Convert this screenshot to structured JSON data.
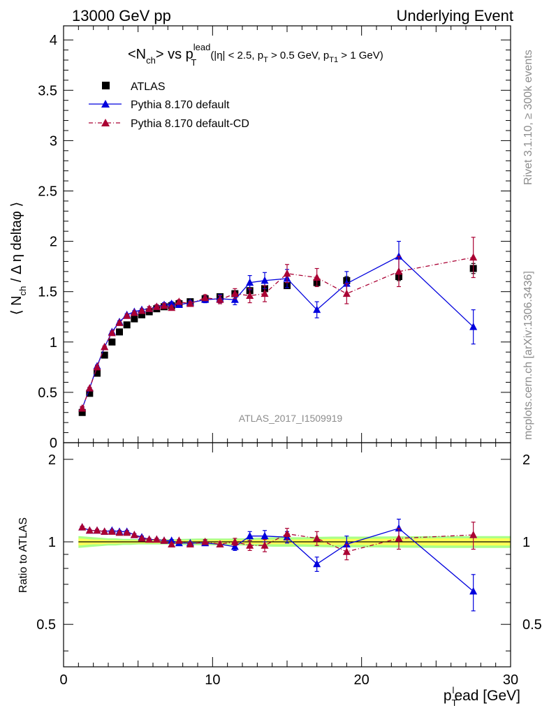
{
  "header": {
    "left": "13000 GeV pp",
    "right": "Underlying Event"
  },
  "side_text": {
    "rivet": "Rivet 3.1.10, ≥ 300k events",
    "mcplots": "mcplots.cern.ch [arXiv:1306.3436]"
  },
  "analysis_tag": "ATLAS_2017_I1509919",
  "chart_data": [
    {
      "type": "scatter",
      "title": "<N_ch> vs p_T^lead (|η| < 2.5, p_T > 0.5 GeV, p_T1 > 1 GeV)",
      "title_parts": {
        "main": "<N",
        "main_sub": "ch",
        "main_rest": "> vs p",
        "pt_sup": "lead",
        "pt_sub": "T",
        "cuts_a": "(|η| < 2.5, p",
        "cuts_a_sub": "T",
        "cuts_b": " > 0.5 GeV, p",
        "cuts_b_sub": "T1",
        "cuts_c": " > 1 GeV)"
      },
      "ylabel": "⟨ N_ch / Δ η deltaφ ⟩",
      "ylabel_parts": {
        "a": "⟨ N",
        "sub": "ch",
        "b": " / Δ η deltaφ ⟩"
      },
      "xlim": [
        0,
        30
      ],
      "ylim": [
        0,
        4.14
      ],
      "yticks": [
        "0",
        "0.5",
        "1",
        "1.5",
        "2",
        "2.5",
        "3",
        "3.5",
        "4"
      ],
      "legend_position": "top-left",
      "series": [
        {
          "name": "ATLAS",
          "marker": "square",
          "color": "#000000",
          "x": [
            1.25,
            1.75,
            2.25,
            2.75,
            3.25,
            3.75,
            4.25,
            4.75,
            5.25,
            5.75,
            6.25,
            6.75,
            7.25,
            7.75,
            8.5,
            9.5,
            10.5,
            11.5,
            12.5,
            13.5,
            15.0,
            17.0,
            19.0,
            22.5,
            27.5
          ],
          "y": [
            0.3,
            0.49,
            0.69,
            0.87,
            1.0,
            1.1,
            1.17,
            1.23,
            1.27,
            1.3,
            1.33,
            1.35,
            1.36,
            1.38,
            1.4,
            1.43,
            1.45,
            1.48,
            1.51,
            1.53,
            1.56,
            1.59,
            1.61,
            1.65,
            1.73
          ],
          "err": [
            0.01,
            0.01,
            0.01,
            0.01,
            0.01,
            0.01,
            0.01,
            0.01,
            0.01,
            0.01,
            0.01,
            0.01,
            0.01,
            0.01,
            0.02,
            0.02,
            0.02,
            0.02,
            0.02,
            0.03,
            0.03,
            0.03,
            0.04,
            0.04,
            0.05
          ]
        },
        {
          "name": "Pythia 8.170 default",
          "marker": "triangle",
          "line": "solid",
          "color": "#0000dd",
          "x": [
            1.25,
            1.75,
            2.25,
            2.75,
            3.25,
            3.75,
            4.25,
            4.75,
            5.25,
            5.75,
            6.25,
            6.75,
            7.25,
            7.75,
            8.5,
            9.5,
            10.5,
            11.5,
            12.5,
            13.5,
            15.0,
            17.0,
            19.0,
            22.5,
            27.5
          ],
          "y": [
            0.34,
            0.54,
            0.76,
            0.95,
            1.1,
            1.2,
            1.27,
            1.3,
            1.32,
            1.33,
            1.35,
            1.37,
            1.38,
            1.37,
            1.39,
            1.42,
            1.43,
            1.42,
            1.59,
            1.61,
            1.63,
            1.32,
            1.58,
            1.85,
            1.15
          ],
          "err": [
            0.01,
            0.01,
            0.01,
            0.01,
            0.01,
            0.01,
            0.01,
            0.01,
            0.01,
            0.02,
            0.02,
            0.02,
            0.02,
            0.02,
            0.02,
            0.03,
            0.04,
            0.05,
            0.07,
            0.08,
            0.09,
            0.08,
            0.12,
            0.15,
            0.17
          ]
        },
        {
          "name": "Pythia 8.170 default-CD",
          "marker": "triangle",
          "line": "dashdot",
          "color": "#aa0033",
          "x": [
            1.25,
            1.75,
            2.25,
            2.75,
            3.25,
            3.75,
            4.25,
            4.75,
            5.25,
            5.75,
            6.25,
            6.75,
            7.25,
            7.75,
            8.5,
            9.5,
            10.5,
            11.5,
            12.5,
            13.5,
            15.0,
            17.0,
            19.0,
            22.5,
            27.5
          ],
          "y": [
            0.34,
            0.54,
            0.75,
            0.95,
            1.09,
            1.19,
            1.26,
            1.29,
            1.31,
            1.33,
            1.35,
            1.36,
            1.34,
            1.4,
            1.38,
            1.44,
            1.42,
            1.48,
            1.46,
            1.48,
            1.68,
            1.64,
            1.48,
            1.7,
            1.84
          ],
          "err": [
            0.01,
            0.01,
            0.01,
            0.01,
            0.01,
            0.01,
            0.01,
            0.01,
            0.01,
            0.02,
            0.02,
            0.02,
            0.02,
            0.02,
            0.02,
            0.03,
            0.04,
            0.05,
            0.07,
            0.08,
            0.09,
            0.09,
            0.1,
            0.15,
            0.2
          ]
        }
      ]
    },
    {
      "type": "scatter",
      "title": "",
      "ylabel": "Ratio to ATLAS",
      "xlabel": "p_T^l ead [GeV]",
      "xlabel_parts": {
        "a": "p",
        "sub": "T",
        "sup": "l",
        "b": "ead [GeV]"
      },
      "xlim": [
        0,
        30
      ],
      "ylim": [
        0.35,
        2.3
      ],
      "xticks": [
        "0",
        "10",
        "20",
        "30"
      ],
      "yticks": [
        "0.5",
        "1",
        "2"
      ],
      "reference_line": 1,
      "band": {
        "x": [
          1.0,
          1.5,
          2.0,
          2.5,
          3.0,
          3.5,
          4.0,
          4.5,
          5.0,
          5.5,
          6.0,
          6.5,
          7.0,
          7.5,
          8.0,
          9.0,
          10.0,
          11.0,
          12.0,
          13.0,
          14.0,
          16.0,
          18.0,
          20.0,
          25.0,
          30.0
        ],
        "inner": [
          0.03,
          0.025,
          0.02,
          0.02,
          0.015,
          0.015,
          0.012,
          0.012,
          0.012,
          0.012,
          0.012,
          0.012,
          0.012,
          0.012,
          0.012,
          0.014,
          0.014,
          0.014,
          0.016,
          0.018,
          0.02,
          0.02,
          0.025,
          0.025,
          0.03,
          0.03
        ],
        "outer": [
          0.05,
          0.045,
          0.04,
          0.035,
          0.03,
          0.03,
          0.025,
          0.025,
          0.022,
          0.022,
          0.022,
          0.022,
          0.022,
          0.022,
          0.025,
          0.028,
          0.028,
          0.028,
          0.03,
          0.035,
          0.04,
          0.04,
          0.045,
          0.045,
          0.05,
          0.05
        ]
      },
      "series": [
        {
          "name": "Pythia 8.170 default",
          "marker": "triangle",
          "line": "solid",
          "color": "#0000dd",
          "x": [
            1.25,
            1.75,
            2.25,
            2.75,
            3.25,
            3.75,
            4.25,
            4.75,
            5.25,
            5.75,
            6.25,
            6.75,
            7.25,
            7.75,
            8.5,
            9.5,
            10.5,
            11.5,
            12.5,
            13.5,
            15.0,
            17.0,
            19.0,
            22.5,
            27.5
          ],
          "y": [
            1.13,
            1.1,
            1.1,
            1.09,
            1.1,
            1.09,
            1.09,
            1.06,
            1.04,
            1.02,
            1.02,
            1.01,
            1.01,
            0.99,
            0.99,
            0.99,
            0.98,
            0.96,
            1.05,
            1.05,
            1.04,
            0.83,
            0.98,
            1.12,
            0.66
          ],
          "err": [
            0.01,
            0.01,
            0.01,
            0.01,
            0.01,
            0.01,
            0.01,
            0.01,
            0.01,
            0.01,
            0.01,
            0.01,
            0.01,
            0.01,
            0.01,
            0.02,
            0.02,
            0.03,
            0.04,
            0.05,
            0.05,
            0.05,
            0.07,
            0.09,
            0.1
          ]
        },
        {
          "name": "Pythia 8.170 default-CD",
          "marker": "triangle",
          "line": "dashdot",
          "color": "#aa0033",
          "x": [
            1.25,
            1.75,
            2.25,
            2.75,
            3.25,
            3.75,
            4.25,
            4.75,
            5.25,
            5.75,
            6.25,
            6.75,
            7.25,
            7.75,
            8.5,
            9.5,
            10.5,
            11.5,
            12.5,
            13.5,
            15.0,
            17.0,
            19.0,
            22.5,
            27.5
          ],
          "y": [
            1.13,
            1.1,
            1.1,
            1.09,
            1.09,
            1.08,
            1.08,
            1.06,
            1.03,
            1.02,
            1.02,
            1.01,
            0.98,
            1.01,
            0.98,
            1.0,
            0.98,
            1.0,
            0.97,
            0.97,
            1.07,
            1.03,
            0.92,
            1.03,
            1.06
          ],
          "err": [
            0.01,
            0.01,
            0.01,
            0.01,
            0.01,
            0.01,
            0.01,
            0.01,
            0.01,
            0.01,
            0.01,
            0.01,
            0.01,
            0.01,
            0.01,
            0.02,
            0.02,
            0.03,
            0.04,
            0.05,
            0.05,
            0.06,
            0.06,
            0.09,
            0.12
          ]
        }
      ]
    }
  ],
  "colors": {
    "atlas": "#000000",
    "pythia_default": "#0000dd",
    "pythia_cd": "#aa0033",
    "band_inner": "#ffff55",
    "band_outer": "#aaff88"
  }
}
